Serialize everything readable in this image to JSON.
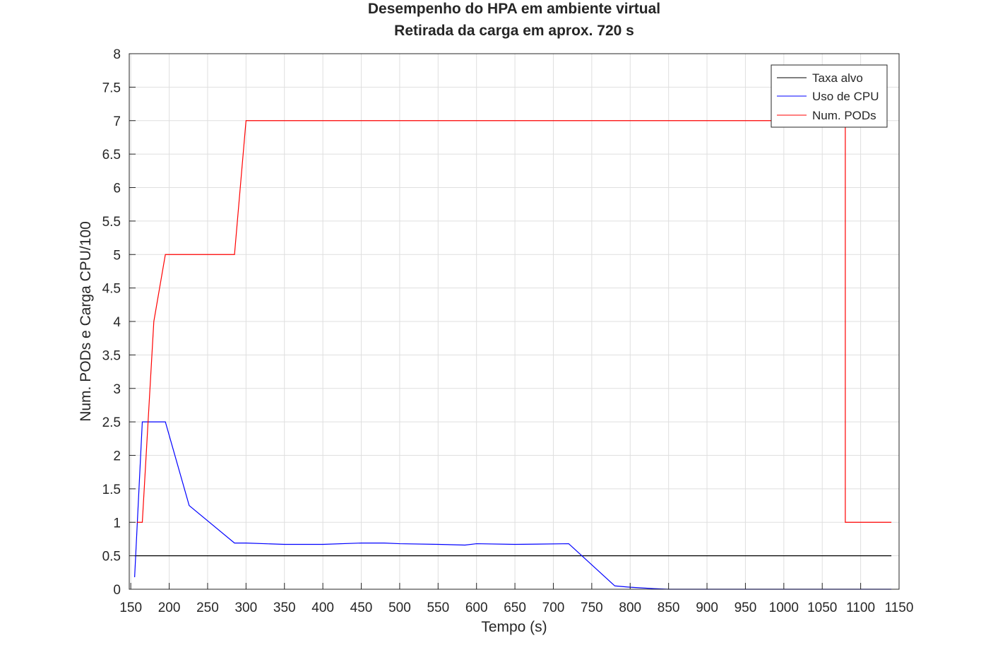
{
  "chart_data": {
    "type": "line",
    "title": [
      "Desempenho do HPA em ambiente virtual",
      "Retirada da carga em aprox. 720 s"
    ],
    "xlabel": "Tempo (s)",
    "ylabel": "Num. PODs e Carga CPU/100",
    "xlim": [
      148,
      1150
    ],
    "ylim": [
      0,
      8
    ],
    "xticks": [
      150,
      200,
      250,
      300,
      350,
      400,
      450,
      500,
      550,
      600,
      650,
      700,
      750,
      800,
      850,
      900,
      950,
      1000,
      1050,
      1100,
      1150
    ],
    "xtick_labels": [
      "150",
      "200",
      "250",
      "300",
      "350",
      "400",
      "450",
      "500",
      "550",
      "600",
      "650",
      "700",
      "750",
      "800",
      "850",
      "900",
      "950",
      "1000",
      "1050",
      "1100",
      "1150"
    ],
    "yticks": [
      0,
      0.5,
      1,
      1.5,
      2,
      2.5,
      3,
      3.5,
      4,
      4.5,
      5,
      5.5,
      6,
      6.5,
      7,
      7.5,
      8
    ],
    "ytick_labels": [
      "0",
      "0.5",
      "1",
      "1.5",
      "2",
      "2.5",
      "3",
      "3.5",
      "4",
      "4.5",
      "5",
      "5.5",
      "6",
      "6.5",
      "7",
      "7.5",
      "8"
    ],
    "grid": true,
    "legend_position": "top-right",
    "series": [
      {
        "name": "Taxa alvo",
        "color": "#000000",
        "x": [
          155,
          1140
        ],
        "y": [
          0.5,
          0.5
        ]
      },
      {
        "name": "Uso de CPU",
        "color": "#0000ff",
        "x": [
          155,
          165,
          195,
          226,
          285,
          300,
          350,
          400,
          450,
          480,
          500,
          550,
          585,
          600,
          650,
          720,
          780,
          800,
          830,
          850,
          900,
          1000,
          1100,
          1140
        ],
        "y": [
          0.18,
          2.5,
          2.5,
          1.25,
          0.69,
          0.69,
          0.67,
          0.67,
          0.69,
          0.69,
          0.68,
          0.67,
          0.66,
          0.68,
          0.67,
          0.68,
          0.05,
          0.03,
          0.01,
          0,
          0,
          0,
          0,
          0
        ]
      },
      {
        "name": "Num. PODs",
        "color": "#ff0000",
        "x": [
          158,
          165,
          180,
          195,
          285,
          300,
          1080,
          1080,
          1140
        ],
        "y": [
          1,
          1,
          4,
          5,
          5,
          7,
          7,
          1,
          1
        ]
      }
    ]
  }
}
